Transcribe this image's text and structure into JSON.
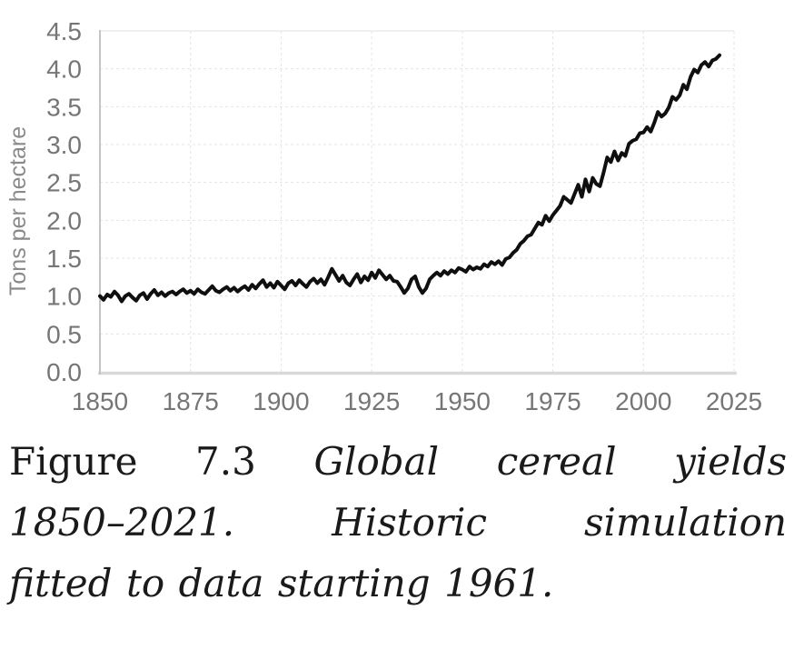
{
  "figure": {
    "caption": {
      "label": "Figure 7.3",
      "title_italic": "Global cereal yields",
      "line2": "1850–2021. Historic simulation",
      "line3": "fitted to data starting 1961."
    }
  },
  "chart_data": {
    "type": "line",
    "title": "",
    "xlabel": "",
    "ylabel": "Tons per hectare",
    "xlim": [
      1850,
      2025
    ],
    "ylim": [
      0,
      4.5
    ],
    "x_ticks": [
      1850,
      1875,
      1900,
      1925,
      1950,
      1975,
      2000,
      2025
    ],
    "y_ticks": [
      0.0,
      0.5,
      1.0,
      1.5,
      2.0,
      2.5,
      3.0,
      3.5,
      4.0,
      4.5
    ],
    "grid": true,
    "legend_position": "none",
    "series": [
      {
        "name": "Global cereal yield",
        "x_start": 1850,
        "x_end": 2021,
        "x_step": 1,
        "values": [
          1.0,
          0.95,
          1.02,
          0.99,
          1.06,
          1.01,
          0.93,
          1.0,
          1.03,
          0.98,
          0.94,
          1.01,
          1.04,
          0.96,
          1.03,
          1.08,
          1.01,
          1.05,
          1.0,
          1.04,
          1.06,
          1.02,
          1.06,
          1.09,
          1.04,
          1.07,
          1.03,
          1.09,
          1.05,
          1.03,
          1.08,
          1.13,
          1.07,
          1.05,
          1.09,
          1.12,
          1.07,
          1.11,
          1.06,
          1.1,
          1.13,
          1.08,
          1.15,
          1.1,
          1.16,
          1.21,
          1.12,
          1.17,
          1.11,
          1.19,
          1.14,
          1.09,
          1.17,
          1.2,
          1.14,
          1.21,
          1.16,
          1.12,
          1.19,
          1.23,
          1.17,
          1.22,
          1.15,
          1.25,
          1.36,
          1.28,
          1.2,
          1.27,
          1.18,
          1.14,
          1.22,
          1.29,
          1.18,
          1.26,
          1.21,
          1.31,
          1.24,
          1.34,
          1.28,
          1.22,
          1.27,
          1.2,
          1.19,
          1.12,
          1.04,
          1.1,
          1.22,
          1.26,
          1.12,
          1.04,
          1.1,
          1.22,
          1.27,
          1.31,
          1.27,
          1.33,
          1.29,
          1.34,
          1.31,
          1.37,
          1.35,
          1.32,
          1.39,
          1.35,
          1.38,
          1.36,
          1.42,
          1.39,
          1.45,
          1.42,
          1.46,
          1.41,
          1.49,
          1.51,
          1.57,
          1.61,
          1.69,
          1.73,
          1.79,
          1.81,
          1.89,
          1.97,
          1.94,
          2.06,
          1.99,
          2.07,
          2.13,
          2.19,
          2.31,
          2.27,
          2.23,
          2.35,
          2.47,
          2.31,
          2.54,
          2.38,
          2.56,
          2.48,
          2.45,
          2.63,
          2.83,
          2.77,
          2.91,
          2.79,
          2.89,
          2.85,
          3.01,
          3.05,
          3.07,
          3.15,
          3.16,
          3.23,
          3.17,
          3.29,
          3.43,
          3.37,
          3.41,
          3.49,
          3.63,
          3.59,
          3.65,
          3.79,
          3.73,
          3.89,
          3.99,
          3.95,
          4.05,
          4.09,
          4.03,
          4.11,
          4.13,
          4.18
        ]
      }
    ],
    "colors": {
      "line": "#0f0f0f",
      "grid": "#e4e4e4",
      "grid_top": "#e2e2e2",
      "axis_left": "#c4c4c4",
      "axis_bottom": "#d9d9d9",
      "tick_text": "#767676",
      "axis_title_text": "#8a8a8a",
      "caption_text": "#1a1a1a",
      "background": "#ffffff"
    }
  }
}
